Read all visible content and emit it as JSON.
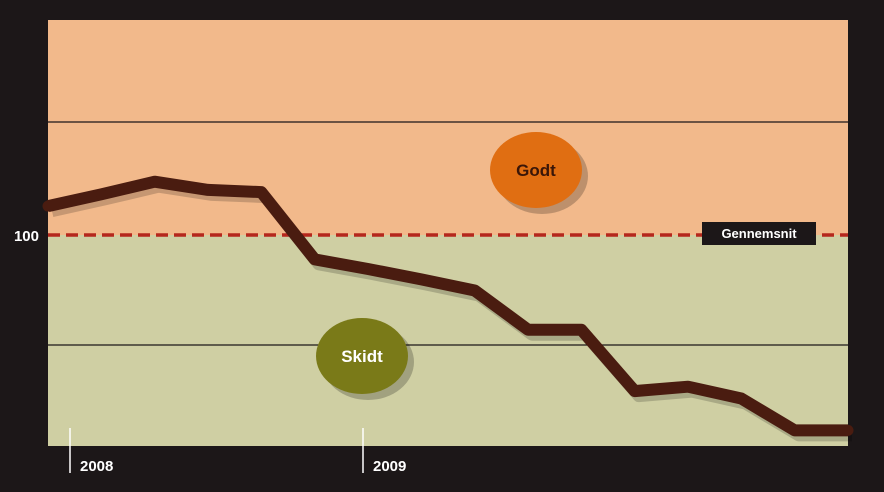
{
  "chart_data": {
    "type": "line",
    "title": "",
    "xlabel": "",
    "ylabel": "",
    "x_ticks": [
      "2008",
      "2009"
    ],
    "y_ticks": [
      100
    ],
    "reference_line": {
      "label": "Gennemsnit",
      "value": 100,
      "color": "#b5271c"
    },
    "zones": [
      {
        "label": "Godt",
        "color": "#f2b98b",
        "bubble_color": "#e06e12",
        "text_color": "#3a1608"
      },
      {
        "label": "Skidt",
        "color": "#cfcfa3",
        "bubble_color": "#7a7a18",
        "text_color": "#ffffff"
      }
    ],
    "series": [
      {
        "color": "#4a1c10",
        "values": [
          103.9,
          105.5,
          107.2,
          106.1,
          105.8,
          96.7,
          95.4,
          94.0,
          92.5,
          87.2,
          87.2,
          78.9,
          79.5,
          77.9,
          73.6,
          73.6
        ]
      }
    ],
    "grid": true
  }
}
